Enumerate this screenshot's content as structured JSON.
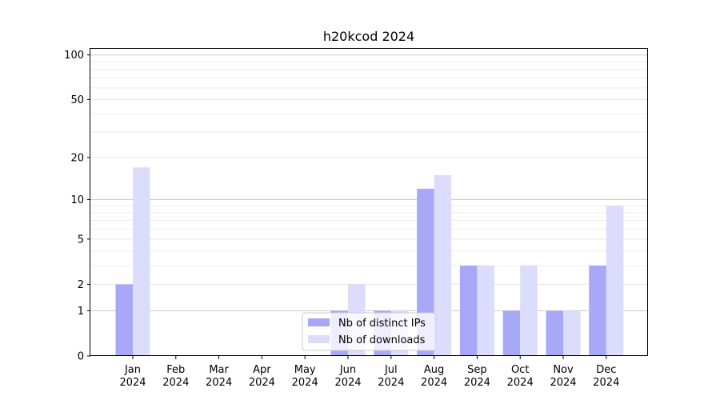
{
  "chart_data": {
    "type": "bar",
    "title": "h20kcod 2024",
    "xlabel": "",
    "ylabel": "",
    "y_scale": "log1p",
    "ylim": [
      0,
      110
    ],
    "y_ticks": [
      0,
      1,
      2,
      5,
      10,
      20,
      50,
      100
    ],
    "categories": [
      [
        "Jan",
        "2024"
      ],
      [
        "Feb",
        "2024"
      ],
      [
        "Mar",
        "2024"
      ],
      [
        "Apr",
        "2024"
      ],
      [
        "May",
        "2024"
      ],
      [
        "Jun",
        "2024"
      ],
      [
        "Jul",
        "2024"
      ],
      [
        "Aug",
        "2024"
      ],
      [
        "Sep",
        "2024"
      ],
      [
        "Oct",
        "2024"
      ],
      [
        "Nov",
        "2024"
      ],
      [
        "Dec",
        "2024"
      ]
    ],
    "series": [
      {
        "name": "Nb of distinct IPs",
        "color": "#a8a8f8",
        "values": [
          2,
          0,
          0,
          0,
          0,
          1,
          1,
          12,
          3,
          1,
          1,
          3
        ]
      },
      {
        "name": "Nb of downloads",
        "color": "#dcdcfc",
        "values": [
          17,
          0,
          0,
          0,
          0,
          2,
          1,
          15,
          3,
          3,
          1,
          9
        ]
      }
    ],
    "grid": true,
    "legend_position": "bottom-center"
  }
}
